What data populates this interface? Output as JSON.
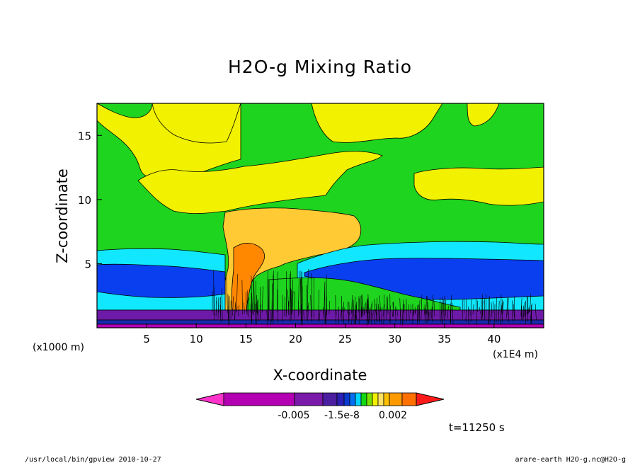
{
  "chart_data": {
    "type": "heatmap",
    "title": "H2O-g Mixing Ratio",
    "xlabel": "X-coordinate",
    "ylabel": "Z-coordinate",
    "x_unit_left": "(x1000 m)",
    "x_unit_right": "(x1E4 m)",
    "xlim": [
      0,
      45
    ],
    "ylim": [
      0,
      17.5
    ],
    "x_ticks": [
      "5",
      "10",
      "15",
      "20",
      "25",
      "30",
      "35",
      "40"
    ],
    "x_tick_values": [
      5,
      10,
      15,
      20,
      25,
      30,
      35,
      40
    ],
    "y_ticks": [
      "5",
      "10",
      "15"
    ],
    "y_tick_values": [
      5,
      10,
      15
    ],
    "colorbar": {
      "labels": [
        "-0.005",
        "-1.5e-8",
        "0.002"
      ],
      "colors": [
        "#ff33cc",
        "#b300b3",
        "#7a1aa8",
        "#4b1fa0",
        "#2b1fb5",
        "#0a3ad0",
        "#0070f0",
        "#00d4ff",
        "#12d812",
        "#7ae000",
        "#f0f000",
        "#ffe066",
        "#ffc000",
        "#ff9a00",
        "#ff7000",
        "#ff1a1a"
      ]
    },
    "colors": {
      "green": "#1ed41e",
      "yellow": "#f2f200",
      "light_orange": "#ffca33",
      "orange": "#ff8800",
      "cyan": "#11e8ff",
      "blue": "#0a3ff0",
      "dark_blue": "#1a2ab0",
      "purple": "#6e1aa8",
      "magenta": "#b300b3"
    },
    "time_label": "t=11250 s"
  },
  "footer": {
    "left": "/usr/local/bin/gpview  2010-10-27",
    "right": "arare-earth_H2O-g.nc@H2O-g"
  }
}
